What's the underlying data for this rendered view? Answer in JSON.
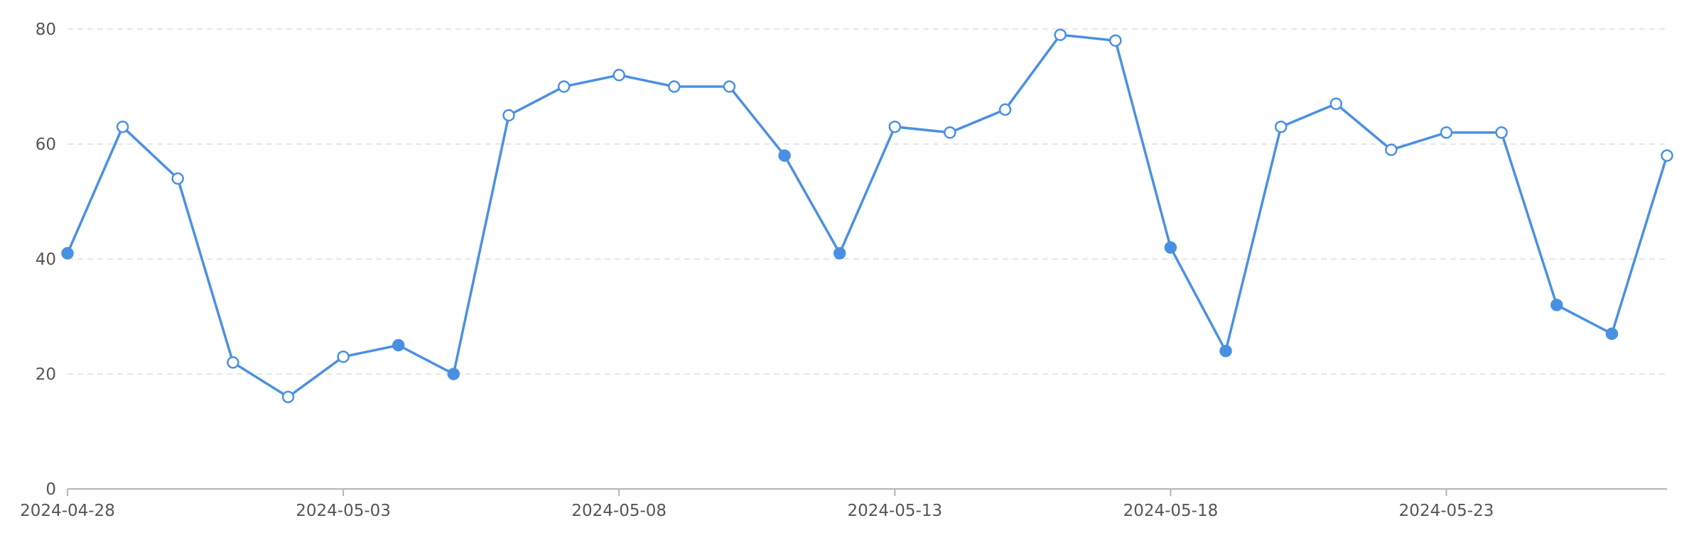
{
  "colors": {
    "series": "#4a90e2",
    "marker_hollow_fill": "#ffffff",
    "grid": "#e6e6e6",
    "axis": "#b5b5b5",
    "text": "#555555"
  },
  "chart_data": {
    "type": "line",
    "title": "",
    "xlabel": "",
    "ylabel": "",
    "ylim": [
      0,
      80
    ],
    "y_ticks": [
      0,
      20,
      40,
      60,
      80
    ],
    "x_tick_labels": [
      "2024-04-28",
      "2024-05-03",
      "2024-05-08",
      "2024-05-13",
      "2024-05-18",
      "2024-05-23"
    ],
    "grid": "horizontal-dashed",
    "legend": "none",
    "x": [
      "2024-04-28",
      "2024-04-29",
      "2024-04-30",
      "2024-05-01",
      "2024-05-02",
      "2024-05-03",
      "2024-05-04",
      "2024-05-05",
      "2024-05-06",
      "2024-05-07",
      "2024-05-08",
      "2024-05-09",
      "2024-05-10",
      "2024-05-11",
      "2024-05-12",
      "2024-05-13",
      "2024-05-14",
      "2024-05-15",
      "2024-05-16",
      "2024-05-17",
      "2024-05-18",
      "2024-05-19",
      "2024-05-20",
      "2024-05-21",
      "2024-05-22",
      "2024-05-23",
      "2024-05-24",
      "2024-05-25",
      "2024-05-26",
      "2024-05-27"
    ],
    "series": [
      {
        "values": [
          41,
          63,
          54,
          22,
          16,
          23,
          25,
          20,
          65,
          70,
          72,
          70,
          70,
          58,
          41,
          63,
          62,
          66,
          79,
          78,
          42,
          24,
          63,
          67,
          59,
          62,
          62,
          32,
          27,
          58
        ],
        "filled_markers": [
          true,
          false,
          false,
          false,
          false,
          false,
          true,
          true,
          false,
          false,
          false,
          false,
          false,
          true,
          true,
          false,
          false,
          false,
          false,
          false,
          true,
          true,
          false,
          false,
          false,
          false,
          false,
          true,
          true,
          false
        ]
      }
    ]
  }
}
